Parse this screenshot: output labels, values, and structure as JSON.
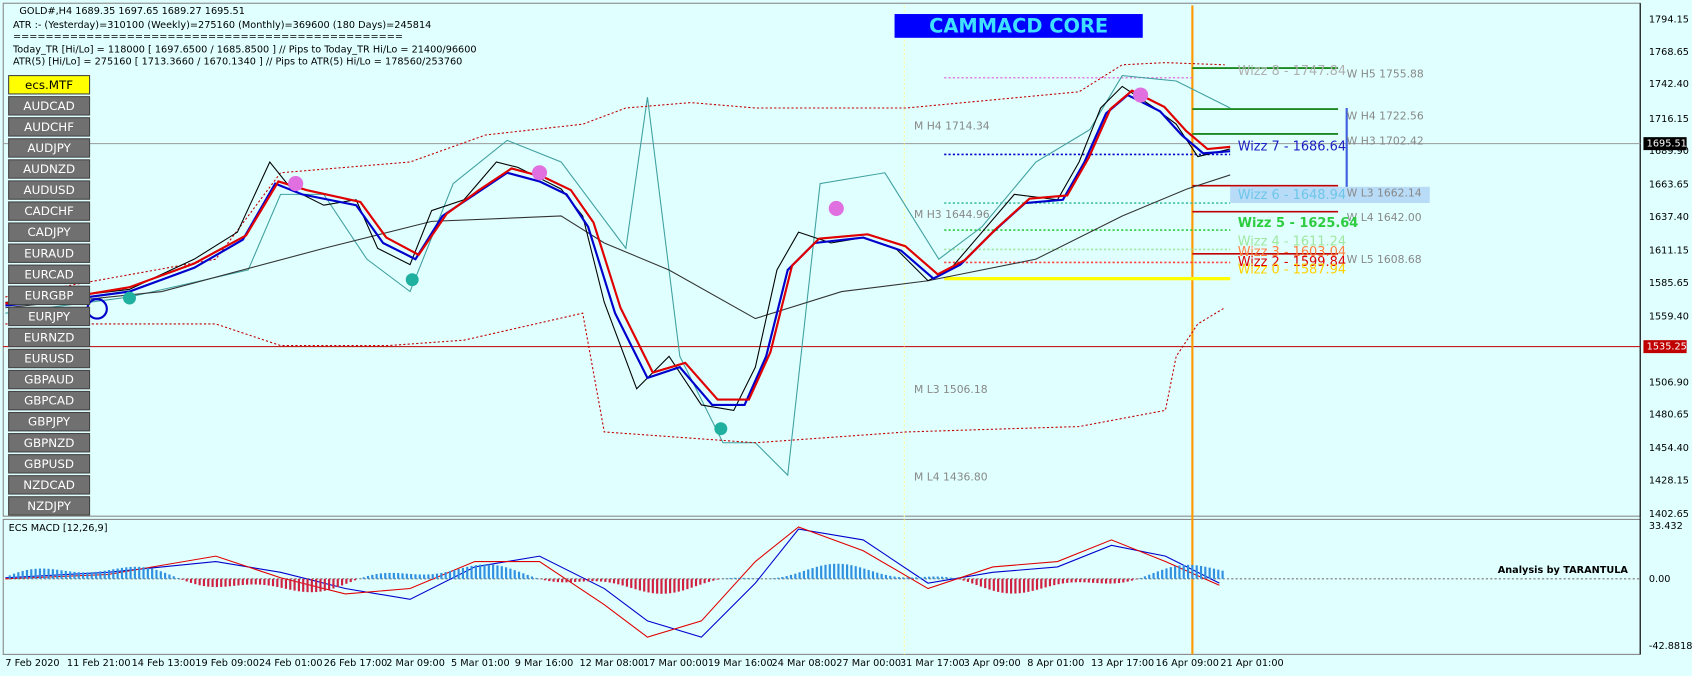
{
  "header": {
    "symbol_line": "GOLD#,H4  1689.35 1697.65 1689.27 1695.51",
    "atr_line": "ATR :- (Yesterday)=310100     (Weekly)=275160     (Monthly)=369600     (180 Days)=245814",
    "separator": "================================================",
    "today_tr_line": "Today_TR [Hi/Lo] = 118000 [ 1697.6500 / 1685.8500 ]  // Pips to Today_TR Hi/Lo  = 21400/96600",
    "atr5_line": "ATR(5)     [Hi/Lo] = 275160 [ 1713.3660 / 1670.1340 ]  // Pips to ATR(5) Hi/Lo     = 178560/253760"
  },
  "banner": "CAMMACD CORE",
  "symbols": [
    "ecs.MTF",
    "AUDCAD",
    "AUDCHF",
    "AUDJPY",
    "AUDNZD",
    "AUDUSD",
    "CADCHF",
    "CADJPY",
    "EURAUD",
    "EURCAD",
    "EURGBP",
    "EURJPY",
    "EURNZD",
    "EURUSD",
    "GBPAUD",
    "GBPCAD",
    "GBPJPY",
    "GBPNZD",
    "GBPUSD",
    "NZDCAD",
    "NZDJPY"
  ],
  "price_axis": [
    "1794.15",
    "1768.65",
    "1742.40",
    "1716.15",
    "1689.90",
    "1663.65",
    "1637.40",
    "1611.15",
    "1585.65",
    "1559.40",
    "1506.90",
    "1480.65",
    "1454.40",
    "1428.15",
    "1402.65"
  ],
  "current_price": "1695.51",
  "marked_price": "1535.25",
  "weekly_levels": [
    "W  H5 1755.88",
    "W  H4 1722.56",
    "W  H3 1702.42",
    "W  L3 1662.14",
    "W  L4 1642.00",
    "W  L5 1608.68"
  ],
  "monthly_levels": [
    "M  H4 1714.34",
    "M  H3 1644.96",
    "M  L3 1506.18",
    "M  L4 1436.80"
  ],
  "wizz_levels": [
    "Wizz 8 - 1747.84",
    "Wizz 7 - 1686.64",
    "Wizz 6 - 1648.94",
    "Wizz 5 - 1625.64",
    "Wizz 4 - 1611.24",
    "Wizz 3 - 1603.04",
    "Wizz 2 - 1599.84",
    "Wizz 0 - 1587.94"
  ],
  "macd": {
    "title": "ECS MACD [12,26,9]",
    "axis": [
      "33.432",
      "0.00",
      "-42.8818"
    ],
    "note": "Analysis by TARANTULA"
  },
  "time_axis": [
    "7 Feb 2020",
    "11 Feb 21:00",
    "14 Feb 13:00",
    "19 Feb 09:00",
    "24 Feb 01:00",
    "26 Feb 17:00",
    "2 Mar 09:00",
    "5 Mar 01:00",
    "9 Mar 16:00",
    "12 Mar 08:00",
    "17 Mar 00:00",
    "19 Mar 16:00",
    "24 Mar 08:00",
    "27 Mar 00:00",
    "31 Mar 17:00",
    "3 Apr 09:00",
    "8 Apr 01:00",
    "13 Apr 17:00",
    "16 Apr 09:00",
    "21 Apr 01:00"
  ]
}
